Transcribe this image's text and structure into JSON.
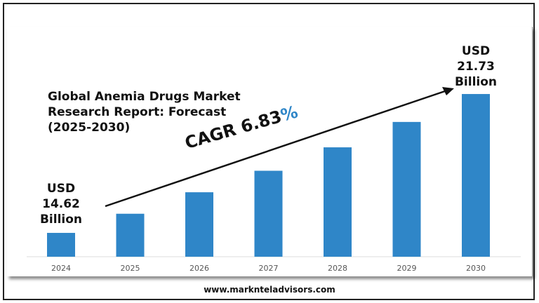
{
  "chart_data": {
    "type": "bar",
    "title": "Global Anemia Drugs Market Research Report: Forecast (2025-2030)",
    "title_lines": [
      "Global Anemia Drugs Market",
      "Research Report: Forecast",
      "(2025-2030)"
    ],
    "categories": [
      "2024",
      "2025",
      "2026",
      "2027",
      "2028",
      "2029",
      "2030"
    ],
    "values": [
      14.62,
      15.6,
      16.7,
      17.8,
      19.0,
      20.3,
      21.73
    ],
    "unit": "USD Billion",
    "ylim": [
      13.4,
      22.5
    ],
    "grid": false,
    "bar_color": "#2f86c8",
    "annotations": {
      "start": {
        "line1": "USD",
        "line2": "14.62",
        "line3": "Billion"
      },
      "end": {
        "line1": "USD",
        "line2": "21.73",
        "line3": "Billion"
      },
      "cagr_text": "CAGR 6.83",
      "cagr_pct": "%",
      "cagr_pct_color": "#2f86c8"
    }
  },
  "footer": "www.marknteladvisors.com"
}
